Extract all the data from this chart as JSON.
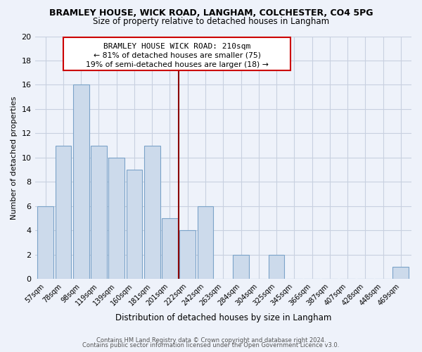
{
  "title": "BRAMLEY HOUSE, WICK ROAD, LANGHAM, COLCHESTER, CO4 5PG",
  "subtitle": "Size of property relative to detached houses in Langham",
  "xlabel": "Distribution of detached houses by size in Langham",
  "ylabel": "Number of detached properties",
  "bar_labels": [
    "57sqm",
    "78sqm",
    "98sqm",
    "119sqm",
    "139sqm",
    "160sqm",
    "181sqm",
    "201sqm",
    "222sqm",
    "242sqm",
    "263sqm",
    "284sqm",
    "304sqm",
    "325sqm",
    "345sqm",
    "366sqm",
    "387sqm",
    "407sqm",
    "428sqm",
    "448sqm",
    "469sqm"
  ],
  "bar_values": [
    6,
    11,
    16,
    11,
    10,
    9,
    11,
    5,
    4,
    6,
    0,
    2,
    0,
    2,
    0,
    0,
    0,
    0,
    0,
    0,
    1
  ],
  "bar_color": "#ccdaeb",
  "bar_edge_color": "#7ba3c8",
  "vline_color": "#8b0000",
  "annotation_title": "BRAMLEY HOUSE WICK ROAD: 210sqm",
  "annotation_line1": "← 81% of detached houses are smaller (75)",
  "annotation_line2": "19% of semi-detached houses are larger (18) →",
  "annotation_box_color": "white",
  "annotation_box_edge": "#cc0000",
  "ylim": [
    0,
    20
  ],
  "yticks": [
    0,
    2,
    4,
    6,
    8,
    10,
    12,
    14,
    16,
    18,
    20
  ],
  "footer1": "Contains HM Land Registry data © Crown copyright and database right 2024.",
  "footer2": "Contains public sector information licensed under the Open Government Licence v3.0.",
  "bg_color": "#eef2fa",
  "grid_color": "#c8d0e0",
  "title_fontsize": 9.0,
  "subtitle_fontsize": 8.5
}
